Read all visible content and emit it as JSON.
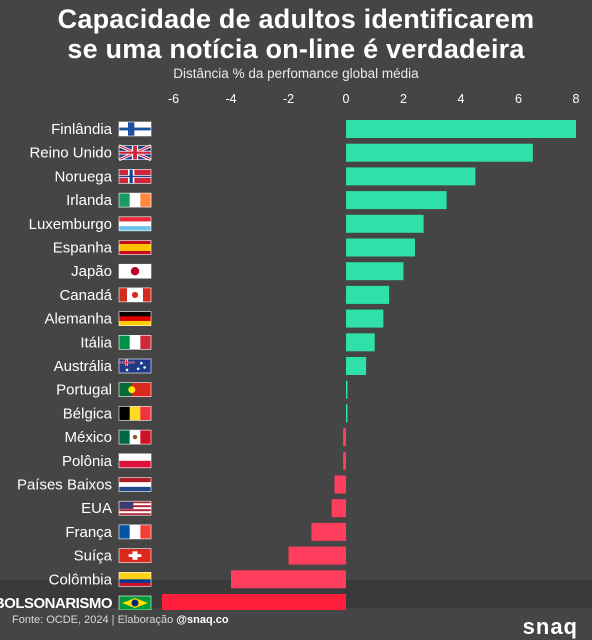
{
  "title_line1": "Capacidade de adultos identificarem",
  "title_line2": "se uma notícia on-line é verdadeira",
  "subtitle": "Distância % da perfomance global média",
  "footer_source": "Fonte: OCDE, 2024 | Elaboração",
  "footer_handle": "@snaq.co",
  "brand": "snaq",
  "colors": {
    "positive": "#2fe0a8",
    "negative": "#ff3d5c",
    "highlight": "#ff1f3d",
    "background": "#454545"
  },
  "chart_data": {
    "type": "bar",
    "orientation": "horizontal",
    "xlim": [
      -6.5,
      8.2
    ],
    "x_ticks": [
      "-6",
      "-4",
      "-2",
      "0",
      "2",
      "4",
      "6",
      "8"
    ],
    "x_tick_values": [
      -6,
      -4,
      -2,
      0,
      2,
      4,
      6,
      8
    ],
    "categories": [
      "Finlândia",
      "Reino Unido",
      "Noruega",
      "Irlanda",
      "Luxemburgo",
      "Espanha",
      "Japão",
      "Canadá",
      "Alemanha",
      "Itália",
      "Austrália",
      "Portugal",
      "Bélgica",
      "México",
      "Polônia",
      "Países Baixos",
      "EUA",
      "França",
      "Suíça",
      "Colômbia",
      "BOLSONARISMO"
    ],
    "flags": [
      "finland-flag-icon",
      "uk-flag-icon",
      "norway-flag-icon",
      "ireland-flag-icon",
      "luxembourg-flag-icon",
      "spain-flag-icon",
      "japan-flag-icon",
      "canada-flag-icon",
      "germany-flag-icon",
      "italy-flag-icon",
      "australia-flag-icon",
      "portugal-flag-icon",
      "belgium-flag-icon",
      "mexico-flag-icon",
      "poland-flag-icon",
      "netherlands-flag-icon",
      "usa-flag-icon",
      "france-flag-icon",
      "switzerland-flag-icon",
      "colombia-flag-icon",
      "brazil-flag-icon"
    ],
    "values": [
      8.0,
      6.5,
      4.5,
      3.5,
      2.7,
      2.4,
      2.0,
      1.5,
      1.3,
      1.0,
      0.7,
      0.05,
      0.02,
      -0.1,
      -0.1,
      -0.4,
      -0.5,
      -1.2,
      -2.0,
      -4.0,
      -6.4
    ],
    "highlight": "BOLSONARISMO"
  }
}
